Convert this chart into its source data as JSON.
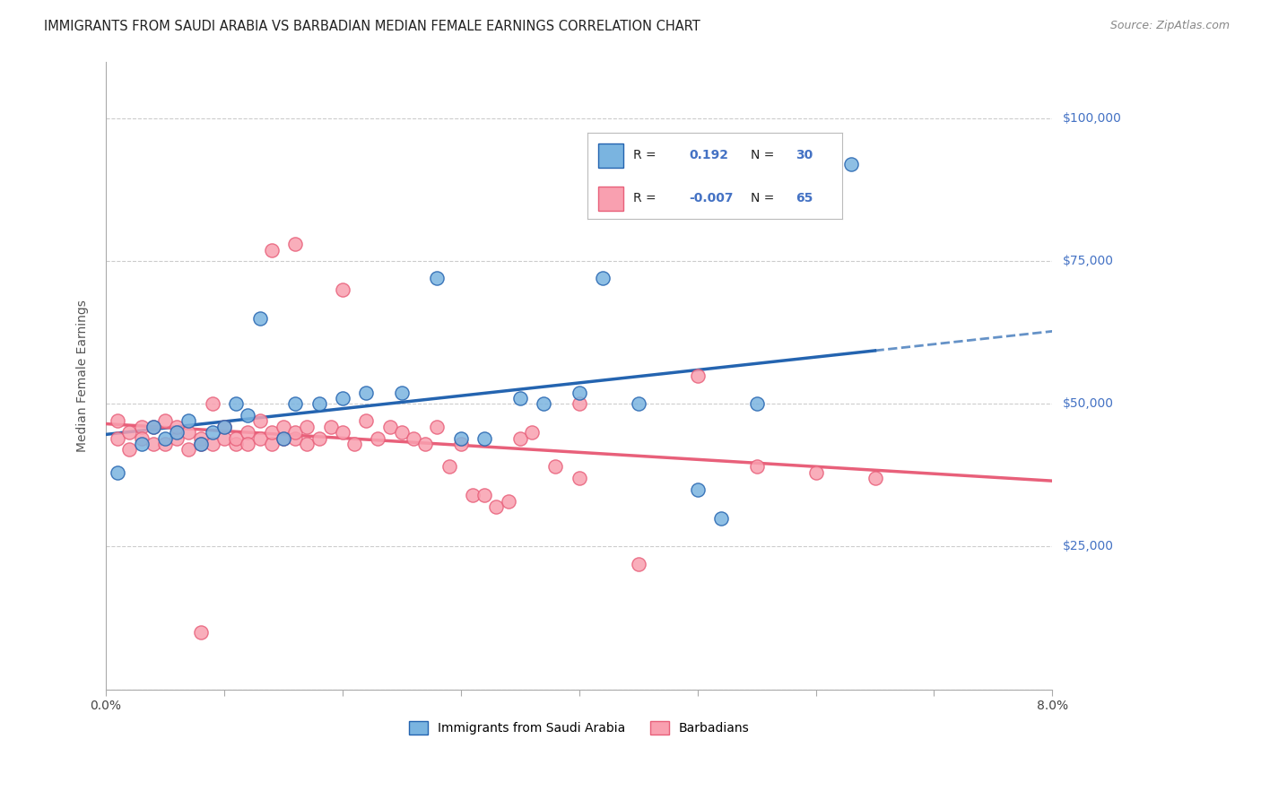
{
  "title": "IMMIGRANTS FROM SAUDI ARABIA VS BARBADIAN MEDIAN FEMALE EARNINGS CORRELATION CHART",
  "source": "Source: ZipAtlas.com",
  "ylabel": "Median Female Earnings",
  "xlim": [
    0.0,
    0.08
  ],
  "ylim": [
    0,
    110000
  ],
  "saudi_color": "#7ab4e0",
  "saudi_line_color": "#2464b0",
  "barbadian_color": "#f9a0b0",
  "barbadian_line_color": "#e8607a",
  "saudi_R": 0.192,
  "saudi_N": 30,
  "barbadian_R": -0.007,
  "barbadian_N": 65,
  "background_color": "#ffffff",
  "grid_color": "#cccccc",
  "right_label_color": "#4472c4",
  "saudi_x": [
    0.001,
    0.003,
    0.004,
    0.005,
    0.006,
    0.007,
    0.008,
    0.009,
    0.01,
    0.011,
    0.012,
    0.013,
    0.015,
    0.016,
    0.018,
    0.02,
    0.022,
    0.025,
    0.028,
    0.03,
    0.032,
    0.035,
    0.037,
    0.04,
    0.042,
    0.045,
    0.05,
    0.052,
    0.055,
    0.063
  ],
  "saudi_y": [
    38000,
    43000,
    46000,
    44000,
    45000,
    47000,
    43000,
    45000,
    46000,
    50000,
    48000,
    65000,
    44000,
    50000,
    50000,
    51000,
    52000,
    52000,
    72000,
    44000,
    44000,
    51000,
    50000,
    52000,
    72000,
    50000,
    35000,
    30000,
    50000,
    92000
  ],
  "barb_x": [
    0.001,
    0.001,
    0.002,
    0.002,
    0.003,
    0.003,
    0.004,
    0.004,
    0.005,
    0.005,
    0.006,
    0.006,
    0.007,
    0.007,
    0.008,
    0.008,
    0.009,
    0.009,
    0.01,
    0.01,
    0.011,
    0.011,
    0.012,
    0.012,
    0.013,
    0.013,
    0.014,
    0.014,
    0.015,
    0.015,
    0.016,
    0.016,
    0.017,
    0.017,
    0.018,
    0.019,
    0.02,
    0.021,
    0.022,
    0.023,
    0.024,
    0.025,
    0.026,
    0.027,
    0.028,
    0.029,
    0.03,
    0.031,
    0.032,
    0.033,
    0.034,
    0.035,
    0.036,
    0.038,
    0.04,
    0.045,
    0.05,
    0.055,
    0.06,
    0.065,
    0.014,
    0.016,
    0.02,
    0.04,
    0.008
  ],
  "barb_y": [
    44000,
    47000,
    45000,
    42000,
    46000,
    44000,
    43000,
    46000,
    47000,
    43000,
    44000,
    46000,
    42000,
    45000,
    44000,
    43000,
    50000,
    43000,
    46000,
    44000,
    43000,
    44000,
    45000,
    43000,
    47000,
    44000,
    43000,
    45000,
    44000,
    46000,
    44000,
    45000,
    46000,
    43000,
    44000,
    46000,
    45000,
    43000,
    47000,
    44000,
    46000,
    45000,
    44000,
    43000,
    46000,
    39000,
    43000,
    34000,
    34000,
    32000,
    33000,
    44000,
    45000,
    39000,
    37000,
    22000,
    55000,
    39000,
    38000,
    37000,
    77000,
    78000,
    70000,
    50000,
    10000
  ]
}
